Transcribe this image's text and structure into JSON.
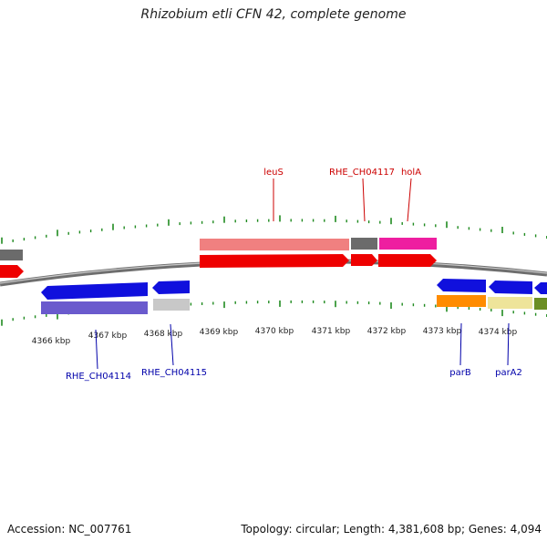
{
  "header": {
    "title": "Rhizobium etli CFN 42, complete genome"
  },
  "footer": {
    "accession": "Accession: NC_007761",
    "summary": "Topology: circular; Length: 4,381,608 bp; Genes: 4,094"
  },
  "colors": {
    "backbone": "#7a7a7a",
    "tick": "#1f8a1f",
    "label_forward": "#cc0000",
    "label_reverse": "#0000aa"
  },
  "ruler": {
    "labels": [
      "4366 kbp",
      "4367 kbp",
      "4368 kbp",
      "4369 kbp",
      "4370 kbp",
      "4371 kbp",
      "4372 kbp",
      "4373 kbp",
      "4374 kbp"
    ]
  },
  "genes": {
    "leuS": "leuS",
    "RHE_CH04117": "RHE_CH04117",
    "holA": "holA",
    "RHE_CH04114": "RHE_CH04114",
    "RHE_CH04115": "RHE_CH04115",
    "parB": "parB",
    "parA2": "parA2"
  }
}
